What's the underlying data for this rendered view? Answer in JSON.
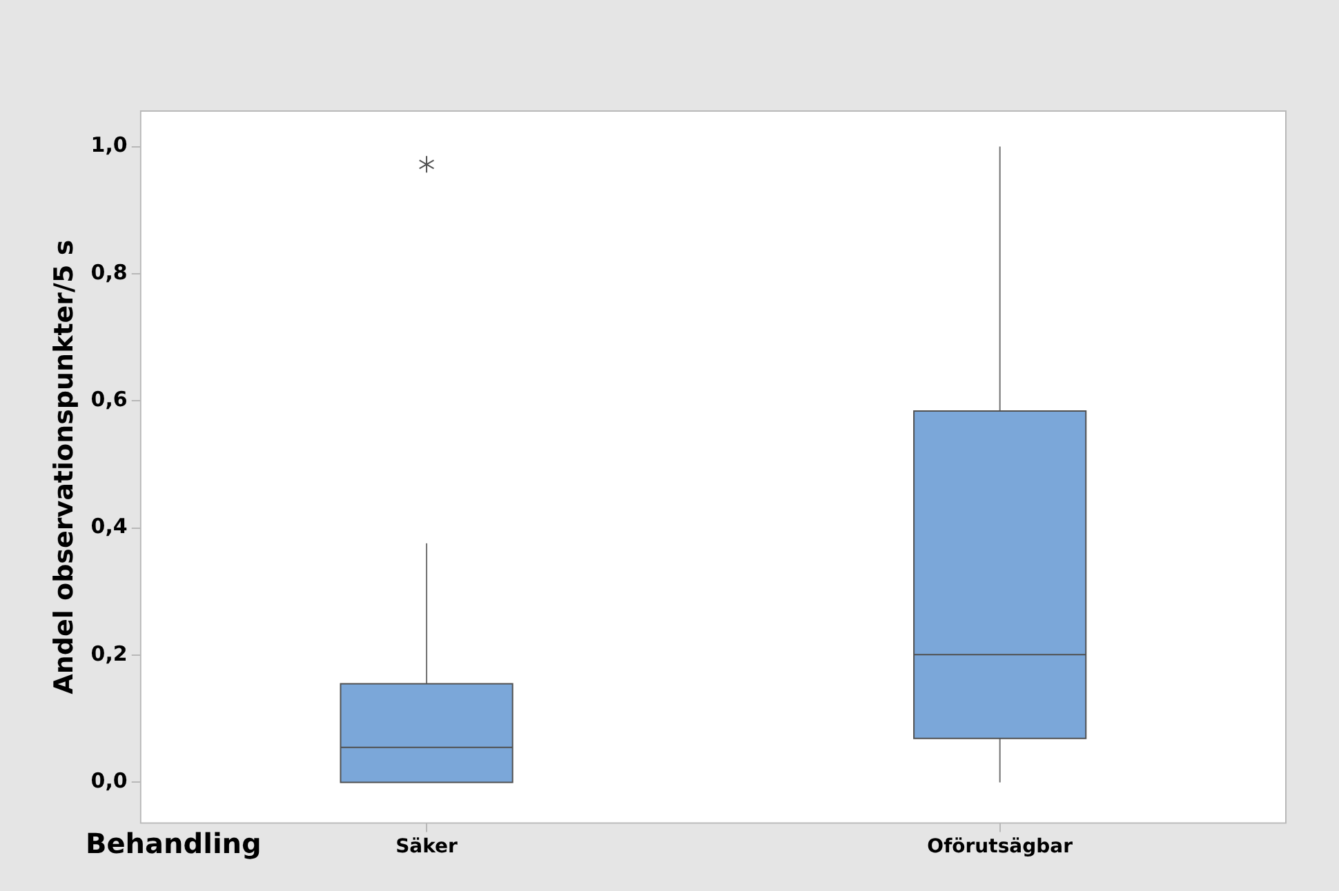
{
  "chart_data": {
    "type": "box",
    "xlabel": "Behandling",
    "ylabel": "Andel observationspunkter/5 s",
    "categories": [
      "Säker",
      "Oförutsägbar"
    ],
    "ylim": [
      -0.065,
      1.057
    ],
    "yticks": [
      {
        "value": 0,
        "label": "0,0"
      },
      {
        "value": 0.2,
        "label": "0,2"
      },
      {
        "value": 0.4,
        "label": "0,4"
      },
      {
        "value": 0.6,
        "label": "0,6"
      },
      {
        "value": 0.8,
        "label": "0,8"
      },
      {
        "value": 1,
        "label": "1,0"
      }
    ],
    "marker": "star",
    "series": [
      {
        "color": "#7ba7d9",
        "boxes": [
          {
            "low": 0,
            "q1": 0,
            "median": 0.055,
            "q3": 0.155,
            "high": 0.376,
            "outliers": [
              0.972
            ]
          },
          {
            "low": 0,
            "q1": 0.069,
            "median": 0.201,
            "q3": 0.584,
            "high": 1.0
          }
        ]
      }
    ]
  }
}
